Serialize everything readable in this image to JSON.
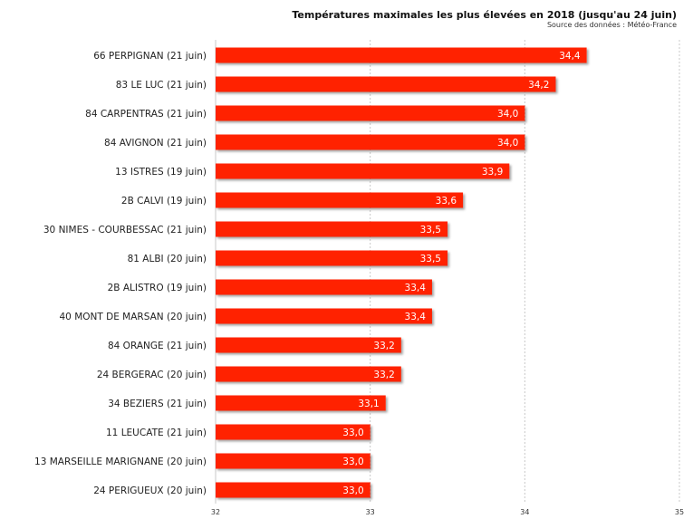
{
  "chart_data": {
    "type": "bar",
    "orientation": "horizontal",
    "title": "Températures maximales les plus élevées en 2018 (jusqu'au 24 juin)",
    "subtitle": "Source des données : Météo-France",
    "categories": [
      "66 PERPIGNAN (21 juin)",
      "83 LE LUC (21 juin)",
      "84 CARPENTRAS (21 juin)",
      "84 AVIGNON (21 juin)",
      "13 ISTRES (19 juin)",
      "2B CALVI (19 juin)",
      "30 NIMES - COURBESSAC (21 juin)",
      "81 ALBI (20 juin)",
      "2B ALISTRO (19 juin)",
      "40 MONT DE MARSAN (20 juin)",
      "84 ORANGE (21 juin)",
      "24 BERGERAC (20 juin)",
      "34 BEZIERS (21 juin)",
      "11 LEUCATE (21 juin)",
      "13 MARSEILLE MARIGNANE (20 juin)",
      "24 PERIGUEUX (20 juin)"
    ],
    "values": [
      34.4,
      34.2,
      34.0,
      34.0,
      33.9,
      33.6,
      33.5,
      33.5,
      33.4,
      33.4,
      33.2,
      33.2,
      33.1,
      33.0,
      33.0,
      33.0
    ],
    "value_labels": [
      "34,4",
      "34,2",
      "34,0",
      "34,0",
      "33,9",
      "33,6",
      "33,5",
      "33,5",
      "33,4",
      "33,4",
      "33,2",
      "33,2",
      "33,1",
      "33,0",
      "33,0",
      "33,0"
    ],
    "xlim": [
      32,
      35
    ],
    "xticks": [
      32,
      33,
      34,
      35
    ],
    "xtick_labels": [
      "32",
      "33",
      "34",
      "35"
    ],
    "grid": true,
    "bar_color": "#ff2200",
    "xlabel": "",
    "ylabel": ""
  }
}
